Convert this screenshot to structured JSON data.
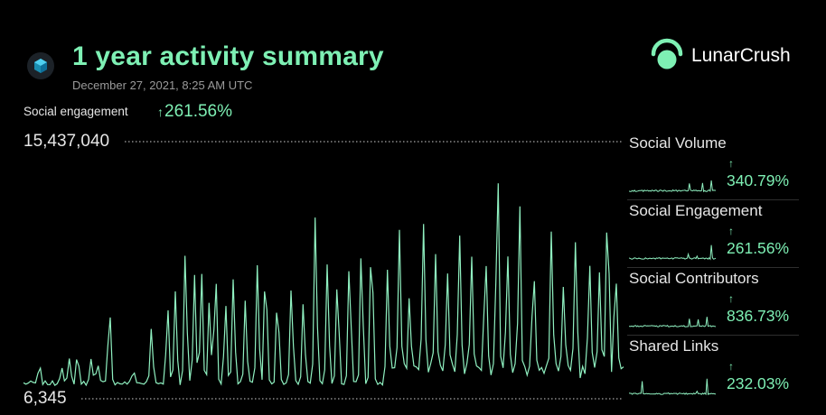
{
  "header": {
    "title": "1 year activity summary",
    "date": "December 27, 2021, 8:25 AM UTC",
    "brand": "LunarCrush",
    "coin_icon": "cube-token-icon"
  },
  "colors": {
    "accent": "#7ef0b4",
    "line": "#8ff0c0",
    "background": "#000000",
    "muted": "#9a9a9a"
  },
  "chart_data": [
    {
      "type": "line",
      "metric_label": "Social engagement",
      "change": "261.56%",
      "ymax_label": "15,437,040",
      "ymin_label": "6,345",
      "ylim": [
        6345,
        15437040
      ],
      "grid": "dotted lines at max and min",
      "x_count": 250,
      "spikes": [
        [
          0.08,
          0.07
        ],
        [
          0.19,
          0.08
        ],
        [
          0.23,
          0.1
        ],
        [
          0.27,
          0.13
        ],
        [
          0.34,
          0.12
        ],
        [
          0.37,
          0.08
        ],
        [
          0.43,
          0.34
        ],
        [
          0.55,
          0.06
        ],
        [
          0.64,
          0.24
        ],
        [
          0.72,
          0.34
        ],
        [
          0.76,
          0.4
        ],
        [
          0.81,
          0.6
        ],
        [
          0.855,
          0.46
        ],
        [
          0.89,
          0.48
        ],
        [
          0.93,
          0.36
        ],
        [
          0.96,
          0.5
        ],
        [
          1.01,
          0.34
        ],
        [
          1.05,
          0.46
        ],
        [
          1.11,
          0.36
        ],
        [
          1.17,
          0.52
        ],
        [
          1.21,
          0.54
        ],
        [
          1.27,
          0.4
        ],
        [
          1.34,
          0.42
        ],
        [
          1.4,
          0.36
        ],
        [
          1.46,
          0.74
        ],
        [
          1.52,
          0.52
        ],
        [
          1.57,
          0.46
        ],
        [
          1.63,
          0.56
        ],
        [
          1.69,
          0.6
        ],
        [
          1.74,
          0.66
        ],
        [
          1.82,
          0.42
        ],
        [
          1.88,
          0.58
        ],
        [
          1.93,
          0.3
        ],
        [
          2.0,
          0.62
        ],
        [
          2.06,
          0.48
        ],
        [
          2.12,
          0.4
        ],
        [
          2.18,
          0.6
        ],
        [
          2.24,
          0.48
        ],
        [
          2.31,
          0.52
        ],
        [
          2.37,
          0.9
        ],
        [
          2.42,
          0.5
        ],
        [
          2.48,
          0.7
        ],
        [
          2.55,
          0.46
        ],
        [
          2.64,
          0.58
        ],
        [
          2.7,
          0.36
        ],
        [
          2.76,
          0.56
        ],
        [
          2.83,
          0.46
        ],
        [
          2.88,
          0.4
        ],
        [
          2.92,
          0.76
        ],
        [
          2.96,
          0.44
        ]
      ]
    },
    {
      "type": "line",
      "name": "Social Volume",
      "change": "340.79%",
      "spikes": [
        [
          0.7,
          0.9
        ],
        [
          0.5,
          0.4
        ],
        [
          0.85,
          0.35
        ],
        [
          0.95,
          0.3
        ]
      ]
    },
    {
      "type": "line",
      "name": "Social Engagement",
      "change": "261.56%",
      "spikes": [
        [
          0.78,
          0.95
        ],
        [
          0.68,
          0.5
        ],
        [
          0.88,
          0.55
        ],
        [
          0.6,
          0.35
        ],
        [
          0.95,
          0.4
        ]
      ]
    },
    {
      "type": "line",
      "name": "Social Contributors",
      "change": "836.73%",
      "spikes": [
        [
          0.7,
          0.95
        ],
        [
          0.8,
          0.35
        ],
        [
          0.9,
          0.3
        ],
        [
          0.55,
          0.25
        ]
      ]
    },
    {
      "type": "line",
      "name": "Shared Links",
      "change": "232.03%",
      "spikes": [
        [
          0.15,
          0.55
        ],
        [
          0.45,
          0.45
        ],
        [
          0.6,
          0.35
        ],
        [
          0.78,
          0.95
        ],
        [
          0.9,
          0.5
        ]
      ]
    }
  ]
}
